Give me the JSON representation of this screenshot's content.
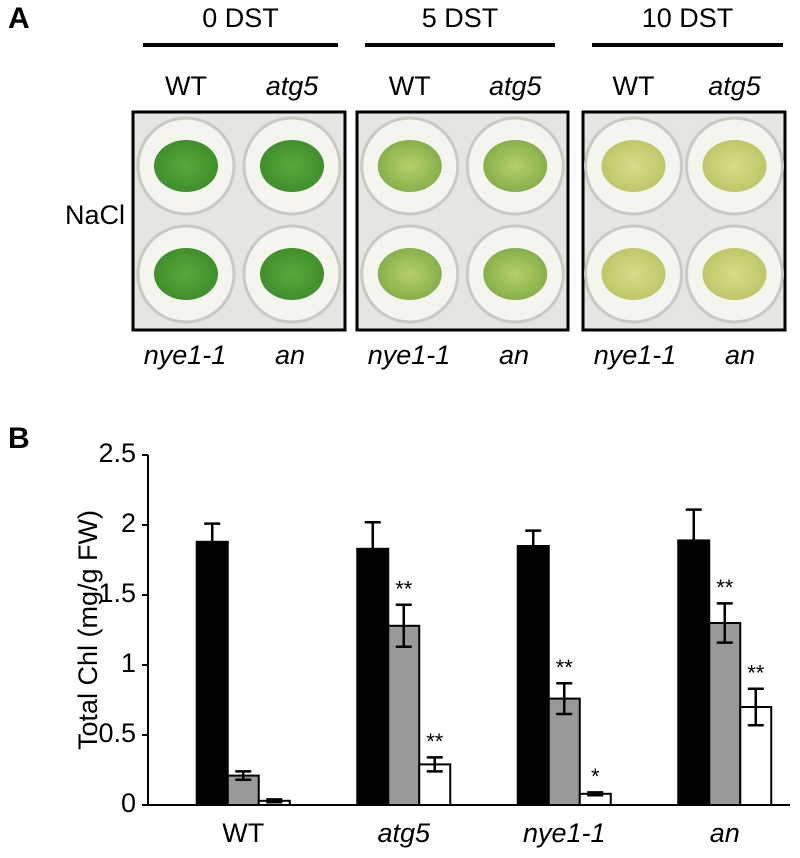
{
  "panel_a": {
    "label": "A",
    "row_label": "NaCl",
    "groups": [
      {
        "title": "0 DST",
        "top_labels": [
          "WT",
          "atg5"
        ],
        "bottom_labels": [
          "nye1-1",
          "an"
        ]
      },
      {
        "title": "5 DST",
        "top_labels": [
          "WT",
          "atg5"
        ],
        "bottom_labels": [
          "nye1-1",
          "an"
        ]
      },
      {
        "title": "10 DST",
        "top_labels": [
          "WT",
          "atg5"
        ],
        "bottom_labels": [
          "nye1-1",
          "an"
        ]
      }
    ]
  },
  "chart_data": {
    "type": "bar",
    "panel_label": "B",
    "ylabel": "Total Chl (mg/g FW)",
    "categories": [
      "WT",
      "atg5",
      "nye1-1",
      "an"
    ],
    "italic_categories": [
      false,
      true,
      true,
      true
    ],
    "series": [
      {
        "color": "#000000",
        "values": [
          1.88,
          1.83,
          1.85,
          1.89
        ],
        "errors": [
          0.13,
          0.19,
          0.11,
          0.22
        ],
        "annotations": [
          null,
          null,
          null,
          null
        ]
      },
      {
        "color": "#999999",
        "values": [
          0.21,
          1.28,
          0.76,
          1.3
        ],
        "errors": [
          0.03,
          0.15,
          0.11,
          0.14
        ],
        "annotations": [
          null,
          "**",
          "**",
          "**"
        ]
      },
      {
        "color": "#ffffff",
        "values": [
          0.03,
          0.29,
          0.08,
          0.7
        ],
        "errors": [
          0.01,
          0.05,
          0.01,
          0.13
        ],
        "annotations": [
          null,
          "**",
          "*",
          "**"
        ]
      }
    ],
    "ylim": [
      0,
      2.5
    ],
    "yticks": [
      0,
      0.5,
      1,
      1.5,
      2,
      2.5
    ]
  }
}
